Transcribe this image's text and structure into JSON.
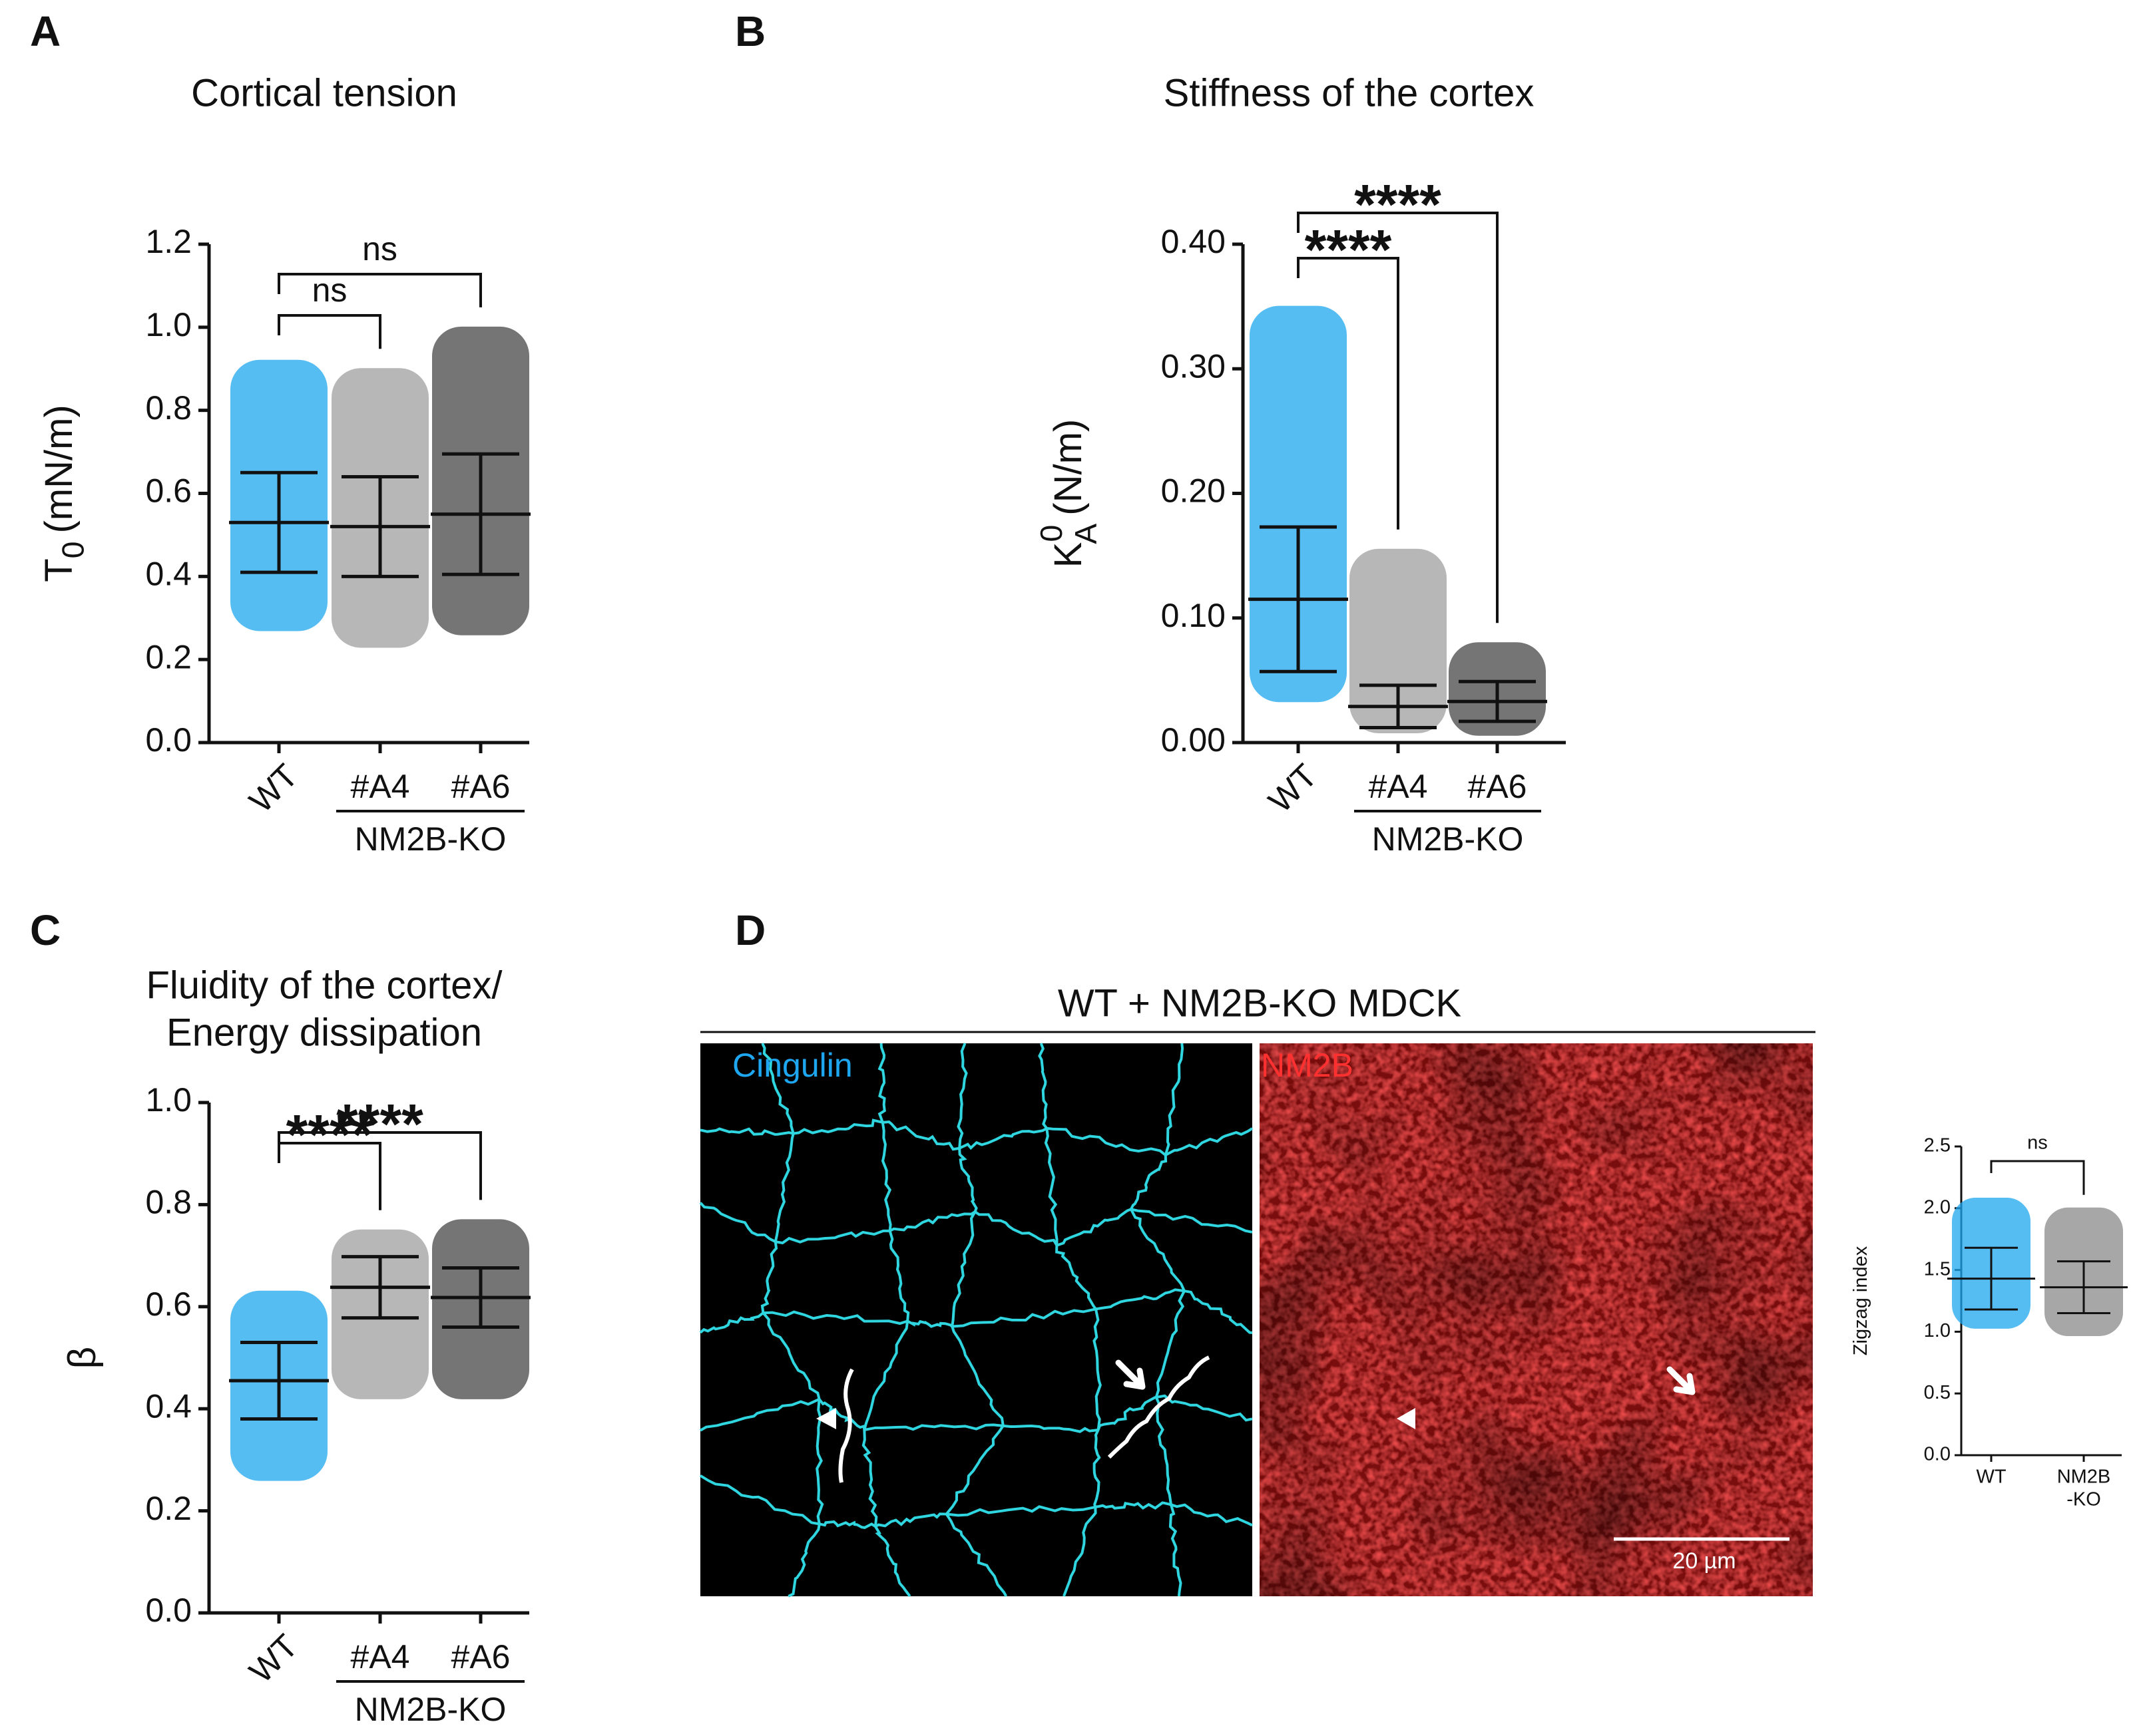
{
  "chart_data": [
    {
      "type": "dot",
      "panel_label": "A",
      "title": [
        "Cortical tension"
      ],
      "ylabel": {
        "main": "T",
        "sub": "0",
        "unit": "(mN/m)"
      },
      "categories": [
        "WT",
        "#A4",
        "#A6"
      ],
      "group_label": "NM2B-KO",
      "colors": [
        "#1ea7f0",
        "#a0a0a0",
        "#474747"
      ],
      "mean": [
        0.53,
        0.52,
        0.55
      ],
      "sd": [
        0.12,
        0.12,
        0.145
      ],
      "min": [
        0.27,
        0.23,
        0.26
      ],
      "max": [
        0.92,
        0.9,
        1.0
      ],
      "ylim": [
        0,
        1.2
      ],
      "yticks": [
        {
          "value": 0,
          "label": "0.0"
        },
        0.2,
        0.4,
        0.6,
        0.8,
        {
          "value": 1,
          "label": "1.0"
        },
        1.2
      ],
      "comparisons": [
        {
          "groups": [
            "WT",
            "#A4"
          ],
          "label": "ns"
        },
        {
          "groups": [
            "WT",
            "#A6"
          ],
          "label": "ns"
        }
      ]
    },
    {
      "type": "dot",
      "panel_label": "B",
      "title": [
        "Stiffness of the cortex"
      ],
      "ylabel": {
        "main": "K",
        "sup": "0",
        "sub": "A",
        "unit": "(N/m)"
      },
      "categories": [
        "WT",
        "#A4",
        "#A6"
      ],
      "group_label": "NM2B-KO",
      "colors": [
        "#1ea7f0",
        "#a0a0a0",
        "#474747"
      ],
      "mean": [
        0.115,
        0.029,
        0.033
      ],
      "sd": [
        0.058,
        0.017,
        0.016
      ],
      "min": [
        0.033,
        0.008,
        0.006
      ],
      "max": [
        0.35,
        0.155,
        0.08
      ],
      "ylim": [
        0,
        0.4
      ],
      "yticks": [
        {
          "value": 0,
          "label": "0.00"
        },
        {
          "value": 0.1,
          "label": "0.10"
        },
        {
          "value": 0.2,
          "label": "0.20"
        },
        {
          "value": 0.3,
          "label": "0.30"
        },
        {
          "value": 0.4,
          "label": "0.40"
        }
      ],
      "comparisons": [
        {
          "groups": [
            "WT",
            "#A4"
          ],
          "label": "****"
        },
        {
          "groups": [
            "WT",
            "#A6"
          ],
          "label": "****"
        }
      ]
    },
    {
      "type": "dot",
      "panel_label": "C",
      "title": [
        "Fluidity of the cortex/",
        "Energy dissipation"
      ],
      "ylabel": {
        "main": "β"
      },
      "categories": [
        "WT",
        "#A4",
        "#A6"
      ],
      "group_label": "NM2B-KO",
      "colors": [
        "#1ea7f0",
        "#a0a0a0",
        "#474747"
      ],
      "mean": [
        0.455,
        0.638,
        0.618
      ],
      "sd": [
        0.075,
        0.06,
        0.058
      ],
      "min": [
        0.26,
        0.42,
        0.42
      ],
      "max": [
        0.63,
        0.75,
        0.77
      ],
      "ylim": [
        0,
        1
      ],
      "yticks": [
        {
          "value": 0,
          "label": "0.0"
        },
        0.2,
        0.4,
        0.6,
        0.8,
        {
          "value": 1,
          "label": "1.0"
        }
      ],
      "comparisons": [
        {
          "groups": [
            "WT",
            "#A4"
          ],
          "label": "****"
        },
        {
          "groups": [
            "WT",
            "#A6"
          ],
          "label": "****"
        }
      ]
    },
    {
      "type": "dot",
      "ylabel": {
        "main": "Zigzag index"
      },
      "categories": [
        [
          "WT"
        ],
        [
          "NM2B",
          "-KO"
        ]
      ],
      "colors": [
        "#1ea7f0",
        "#8a8a8a"
      ],
      "mean": [
        1.43,
        1.36
      ],
      "sd": [
        0.25,
        0.21
      ],
      "min": [
        1.03,
        0.97
      ],
      "max": [
        2.08,
        2.0
      ],
      "ylim": [
        0,
        2.5
      ],
      "yticks": [
        {
          "value": 0,
          "label": "0.0"
        },
        0.5,
        {
          "value": 1,
          "label": "1.0"
        },
        1.5,
        {
          "value": 2,
          "label": "2.0"
        },
        2.5
      ],
      "comparisons": [
        {
          "groups": [
            "WT",
            "NM2B-KO"
          ],
          "label": "ns"
        }
      ]
    }
  ],
  "image_panel": {
    "panel_label": "D",
    "title": "WT + NM2B-KO MDCK",
    "channels": [
      "Cingulin",
      "NM2B"
    ],
    "scale_bar": "20 µm"
  }
}
